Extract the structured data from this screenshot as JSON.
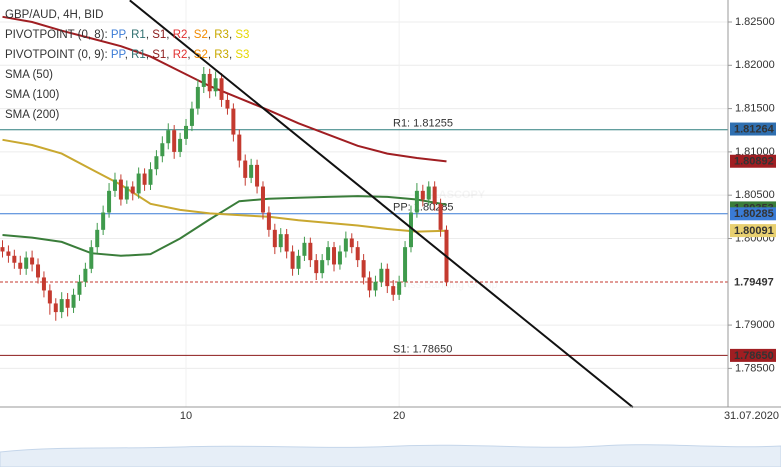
{
  "chart_data": {
    "type": "candlestick",
    "title": "GBP/AUD, 4H, BID",
    "pivot_legends": [
      {
        "prefix": "PIVOTPOINT (0, 8): "
      },
      {
        "prefix": "PIVOTPOINT (0, 9): "
      }
    ],
    "pivot_items": [
      {
        "name": "PP",
        "color": "#3a7bd5"
      },
      {
        "name": "R1",
        "color": "#2f6f6f"
      },
      {
        "name": "S1",
        "color": "#8b1a1a"
      },
      {
        "name": "R2",
        "color": "#e03030"
      },
      {
        "name": "S2",
        "color": "#f08a00"
      },
      {
        "name": "R3",
        "color": "#c8a800"
      },
      {
        "name": "S3",
        "color": "#e6d600"
      }
    ],
    "separator": ", ",
    "watermark": {
      "main": "DUKASCOPY",
      "sub": "Swiss Banking Group"
    },
    "categories": [
      null,
      null,
      null,
      null,
      null,
      null,
      null,
      null,
      null,
      null,
      null,
      null,
      null,
      null,
      null,
      null,
      null,
      null,
      null,
      null,
      null,
      null,
      null,
      null,
      null,
      null,
      null,
      null,
      null,
      null,
      null,
      "10",
      null,
      null,
      null,
      null,
      null,
      null,
      null,
      null,
      null,
      null,
      null,
      null,
      null,
      null,
      null,
      null,
      null,
      null,
      null,
      null,
      null,
      null,
      null,
      null,
      null,
      null,
      null,
      null,
      null,
      null,
      null,
      null,
      null,
      null,
      null,
      "20",
      null,
      null,
      null,
      null,
      null,
      null,
      null,
      null
    ],
    "x_end_label": "31.07.2020",
    "open": [
      1.799,
      1.7985,
      1.798,
      1.7972,
      1.7965,
      1.7978,
      1.797,
      1.7955,
      1.794,
      1.7925,
      1.7915,
      1.793,
      1.792,
      1.7935,
      1.795,
      1.7965,
      1.799,
      1.801,
      1.803,
      1.8055,
      1.8068,
      1.8045,
      1.806,
      1.8052,
      1.8075,
      1.8062,
      1.808,
      1.8095,
      1.811,
      1.8125,
      1.81,
      1.8115,
      1.813,
      1.815,
      1.8175,
      1.819,
      1.817,
      1.8185,
      1.816,
      1.815,
      1.812,
      1.809,
      1.807,
      1.8085,
      1.806,
      1.803,
      1.801,
      1.799,
      1.8005,
      1.7985,
      1.7965,
      1.798,
      1.7995,
      1.7975,
      1.796,
      1.7975,
      1.799,
      1.797,
      1.7985,
      1.8,
      1.799,
      1.7975,
      1.7955,
      1.794,
      1.795,
      1.7965,
      1.7945,
      1.7935,
      1.795,
      1.799,
      1.803,
      1.8055,
      1.8045,
      1.806,
      1.804,
      1.801
    ],
    "high": [
      1.7998,
      1.7992,
      1.7987,
      1.798,
      1.7985,
      1.7986,
      1.7977,
      1.7962,
      1.7947,
      1.7931,
      1.7938,
      1.7937,
      1.7942,
      1.7958,
      1.7972,
      1.7998,
      1.8018,
      1.8038,
      1.8064,
      1.8076,
      1.8074,
      1.8067,
      1.8066,
      1.8082,
      1.8081,
      1.8088,
      1.8102,
      1.8118,
      1.8133,
      1.8131,
      1.8122,
      1.8138,
      1.8158,
      1.8184,
      1.8198,
      1.8196,
      1.8193,
      1.8191,
      1.8167,
      1.8156,
      1.8126,
      1.8097,
      1.8092,
      1.8091,
      1.8066,
      1.8037,
      1.8017,
      1.8012,
      1.8011,
      1.7992,
      1.7987,
      1.8002,
      1.8001,
      1.7982,
      1.7982,
      1.7997,
      1.7996,
      1.7992,
      1.8008,
      1.8006,
      1.7997,
      1.7982,
      1.7962,
      1.7957,
      1.7972,
      1.7971,
      1.7952,
      1.7957,
      1.7997,
      1.8038,
      1.8064,
      1.8062,
      1.8066,
      1.8066,
      1.8046,
      1.8015
    ],
    "low": [
      1.7978,
      1.7972,
      1.7965,
      1.7958,
      1.7958,
      1.7962,
      1.7948,
      1.7932,
      1.7912,
      1.7905,
      1.7908,
      1.791,
      1.7914,
      1.7928,
      1.7944,
      1.796,
      1.7983,
      1.8004,
      1.8024,
      1.8048,
      1.8038,
      1.804,
      1.8044,
      1.8046,
      1.8055,
      1.8056,
      1.8073,
      1.8088,
      1.8103,
      1.8092,
      1.8094,
      1.8108,
      1.8124,
      1.8143,
      1.8168,
      1.8162,
      1.8164,
      1.8152,
      1.8143,
      1.8112,
      1.8082,
      1.8061,
      1.8064,
      1.8052,
      1.8022,
      1.8002,
      1.7982,
      1.7984,
      1.7977,
      1.7957,
      1.7958,
      1.7974,
      1.7967,
      1.7952,
      1.7954,
      1.7969,
      1.7962,
      1.7964,
      1.7978,
      1.7983,
      1.7967,
      1.7947,
      1.7932,
      1.7933,
      1.7944,
      1.7937,
      1.7928,
      1.7929,
      1.7944,
      1.7984,
      1.8024,
      1.8037,
      1.8038,
      1.8032,
      1.8002,
      1.7945
    ],
    "close": [
      1.7985,
      1.798,
      1.7972,
      1.7965,
      1.7978,
      1.797,
      1.7955,
      1.794,
      1.7925,
      1.7915,
      1.793,
      1.792,
      1.7935,
      1.795,
      1.7965,
      1.799,
      1.801,
      1.803,
      1.8055,
      1.8068,
      1.8045,
      1.806,
      1.8052,
      1.8075,
      1.8062,
      1.808,
      1.8095,
      1.811,
      1.8125,
      1.81,
      1.8115,
      1.813,
      1.815,
      1.8175,
      1.819,
      1.817,
      1.8185,
      1.816,
      1.815,
      1.812,
      1.809,
      1.807,
      1.8085,
      1.806,
      1.803,
      1.801,
      1.799,
      1.8005,
      1.7985,
      1.7965,
      1.798,
      1.7995,
      1.7975,
      1.796,
      1.7975,
      1.799,
      1.797,
      1.7985,
      1.8,
      1.799,
      1.7975,
      1.7955,
      1.794,
      1.795,
      1.7965,
      1.7945,
      1.7935,
      1.795,
      1.799,
      1.803,
      1.8055,
      1.8045,
      1.806,
      1.804,
      1.801,
      1.79497
    ],
    "up_color": "#3f9a4c",
    "down_color": "#c43a2f",
    "series": [
      {
        "name": "SMA (50)",
        "color": "#3a7d3a",
        "x": [
          0,
          5,
          10,
          15,
          20,
          25,
          30,
          35,
          40,
          45,
          50,
          55,
          60,
          65,
          70,
          75
        ],
        "values": [
          1.8004,
          1.8001,
          1.7996,
          1.7983,
          1.798,
          1.7982,
          1.8,
          1.8022,
          1.8043,
          1.8046,
          1.8047,
          1.8048,
          1.8049,
          1.8048,
          1.8045,
          1.8039
        ]
      },
      {
        "name": "SMA (100)",
        "color": "#c9a830",
        "x": [
          0,
          5,
          10,
          15,
          20,
          25,
          30,
          35,
          40,
          45,
          50,
          55,
          60,
          65,
          70,
          75
        ],
        "values": [
          1.8114,
          1.8108,
          1.8098,
          1.808,
          1.8062,
          1.804,
          1.8033,
          1.8029,
          1.8027,
          1.8025,
          1.8021,
          1.8018,
          1.8015,
          1.8011,
          1.8008,
          1.8009
        ]
      },
      {
        "name": "SMA (200)",
        "color": "#a01e22",
        "x": [
          0,
          5,
          10,
          15,
          20,
          25,
          30,
          35,
          40,
          45,
          50,
          55,
          60,
          65,
          70,
          75
        ],
        "values": [
          1.8256,
          1.825,
          1.824,
          1.8231,
          1.8222,
          1.821,
          1.8193,
          1.8176,
          1.8162,
          1.8148,
          1.8133,
          1.812,
          1.8107,
          1.8098,
          1.8093,
          1.8089
        ]
      }
    ],
    "trendline": {
      "x": [
        21.5,
        106.5
      ],
      "values": [
        1.8275,
        1.7805
      ],
      "color": "#111111"
    },
    "levels": [
      {
        "value": 1.81255,
        "label": "R1: 1.81255",
        "color": "#2f7f7f"
      },
      {
        "value": 1.80285,
        "label": "PP: 1.80285",
        "color": "#3a7bd5"
      },
      {
        "value": 1.7865,
        "label": "S1: 1.78650",
        "color": "#8b1a1a"
      }
    ],
    "current_price": {
      "value": 1.79497,
      "label": "1.79497",
      "color": "#c43a2f"
    },
    "price_labels": [
      {
        "value": 1.81264,
        "label": "1.81264",
        "color": "#2f6fb0"
      },
      {
        "value": 1.80892,
        "label": "1.80892",
        "color": "#a01e22"
      },
      {
        "value": 1.80353,
        "label": "1.80353",
        "color": "#3a7d3a"
      },
      {
        "value": 1.80285,
        "label": "1.80285",
        "color": "#3a7bd5"
      },
      {
        "value": 1.80091,
        "label": "1.80091",
        "color": "#e8d070"
      },
      {
        "value": 1.7865,
        "label": "1.78650",
        "color": "#a01e22"
      }
    ],
    "ylim": [
      1.78054,
      1.82754
    ],
    "yticks": [
      {
        "value": 1.825,
        "label": "1.82500"
      },
      {
        "value": 1.82,
        "label": "1.82000"
      },
      {
        "value": 1.815,
        "label": "1.81500"
      },
      {
        "value": 1.81,
        "label": "1.81000"
      },
      {
        "value": 1.805,
        "label": "1.80500"
      },
      {
        "value": 1.8,
        "label": "1.80000"
      },
      {
        "value": 1.79,
        "label": "1.79000"
      },
      {
        "value": 1.785,
        "label": "1.78500"
      }
    ],
    "grid": true
  }
}
